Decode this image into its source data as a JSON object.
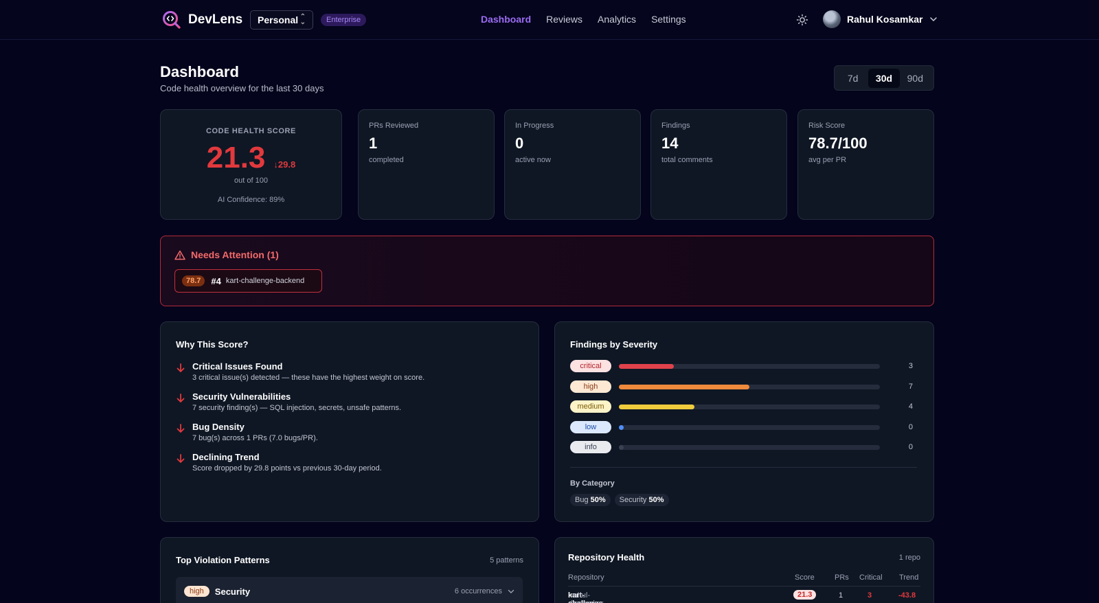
{
  "brand": {
    "name": "DevLens"
  },
  "workspace": {
    "value": "Personal"
  },
  "plan_badge": "Enterprise",
  "nav": [
    {
      "label": "Dashboard",
      "active": true
    },
    {
      "label": "Reviews"
    },
    {
      "label": "Analytics"
    },
    {
      "label": "Settings"
    }
  ],
  "user": {
    "name": "Rahul Kosamkar"
  },
  "header": {
    "title": "Dashboard",
    "subtitle": "Code health overview for the last 30 days"
  },
  "range": {
    "options": [
      "7d",
      "30d",
      "90d"
    ],
    "selected": "30d"
  },
  "health": {
    "label": "CODE HEALTH SCORE",
    "score": "21.3",
    "delta": "29.8",
    "out_of": "out of 100",
    "confidence": "AI Confidence: 89%"
  },
  "stats": [
    {
      "label": "PRs Reviewed",
      "value": "1",
      "sub": "completed"
    },
    {
      "label": "In Progress",
      "value": "0",
      "sub": "active now"
    },
    {
      "label": "Findings",
      "value": "14",
      "sub": "total comments"
    },
    {
      "label": "Risk Score",
      "value": "78.7/100",
      "sub": "avg per PR"
    }
  ],
  "attention": {
    "title": "Needs Attention (1)",
    "item": {
      "risk": "78.7",
      "number": "#4",
      "repo": "kart-challenge-backend"
    }
  },
  "why": {
    "title": "Why This Score?",
    "reasons": [
      {
        "title": "Critical Issues Found",
        "detail": "3 critical issue(s) detected — these have the highest weight on score."
      },
      {
        "title": "Security Vulnerabilities",
        "detail": "7 security finding(s) — SQL injection, secrets, unsafe patterns."
      },
      {
        "title": "Bug Density",
        "detail": "7 bug(s) across 1 PRs (7.0 bugs/PR)."
      },
      {
        "title": "Declining Trend",
        "detail": "Score dropped by 29.8 points vs previous 30-day period."
      }
    ]
  },
  "severity": {
    "title": "Findings by Severity",
    "rows": [
      {
        "label": "critical",
        "count": "3",
        "fraction": 0.21,
        "color": "#e0424b",
        "pill_bg": "#fde2e2",
        "pill_fg": "#b32127"
      },
      {
        "label": "high",
        "count": "7",
        "fraction": 0.5,
        "color": "#ef8a3c",
        "pill_bg": "#fde8d4",
        "pill_fg": "#8a3a12"
      },
      {
        "label": "medium",
        "count": "4",
        "fraction": 0.29,
        "color": "#f0cc3c",
        "pill_bg": "#fcf3c8",
        "pill_fg": "#7a5d06"
      },
      {
        "label": "low",
        "count": "0",
        "fraction": 0.0,
        "color": "#4f8ff7",
        "pill_bg": "#dbe8fd",
        "pill_fg": "#1d4ea8"
      },
      {
        "label": "info",
        "count": "0",
        "fraction": 0.0,
        "color": "#3a4152",
        "pill_bg": "#e9ebef",
        "pill_fg": "#394152"
      }
    ],
    "by_category_label": "By Category",
    "categories": [
      {
        "name": "Bug",
        "pct": "50%"
      },
      {
        "name": "Security",
        "pct": "50%"
      }
    ]
  },
  "violations": {
    "title": "Top Violation Patterns",
    "count": "5 patterns",
    "first": {
      "severity": "high",
      "name": "Security",
      "occurrences": "6 occurrences"
    }
  },
  "repo_health": {
    "title": "Repository Health",
    "count": "1 repo",
    "columns": [
      "Repository",
      "Score",
      "PRs",
      "Critical",
      "Trend"
    ],
    "rows": [
      {
        "name": "kart-challenge-backend",
        "owner": "rahul-kosamkar",
        "score": "21.3",
        "prs": "1",
        "critical": "3",
        "trend": "-43.8"
      }
    ]
  }
}
